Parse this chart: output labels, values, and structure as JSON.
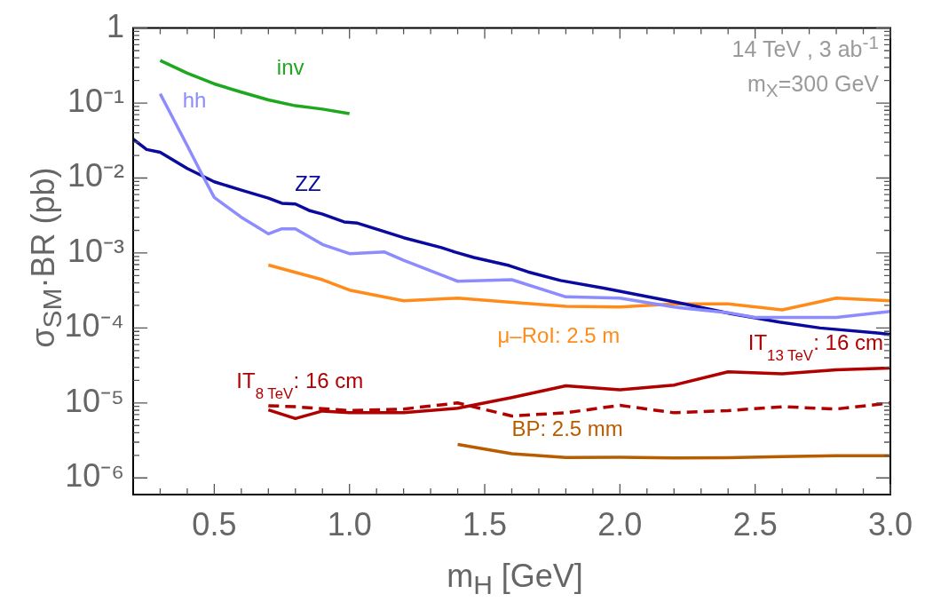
{
  "chart_data": {
    "type": "line",
    "xlabel": "m$_{H}$ [GeV]",
    "ylabel": "σ$_{SM}$·BR (pb)",
    "log": "y",
    "xlim": [
      0.2,
      3.0
    ],
    "ylim": [
      6e-07,
      1
    ],
    "xticks": [
      {
        "value": 0.3,
        "label": null
      },
      {
        "value": 0.4,
        "label": null
      },
      {
        "value": 0.5,
        "label": "0.5"
      },
      {
        "value": 0.6,
        "label": null
      },
      {
        "value": 0.7,
        "label": null
      },
      {
        "value": 0.8,
        "label": null
      },
      {
        "value": 0.9,
        "label": null
      },
      {
        "value": 1.0,
        "label": "1.0"
      },
      {
        "value": 1.1,
        "label": null
      },
      {
        "value": 1.2,
        "label": null
      },
      {
        "value": 1.3,
        "label": null
      },
      {
        "value": 1.4,
        "label": null
      },
      {
        "value": 1.5,
        "label": "1.5"
      },
      {
        "value": 1.6,
        "label": null
      },
      {
        "value": 1.7,
        "label": null
      },
      {
        "value": 1.8,
        "label": null
      },
      {
        "value": 1.9,
        "label": null
      },
      {
        "value": 2.0,
        "label": "2.0"
      },
      {
        "value": 2.1,
        "label": null
      },
      {
        "value": 2.2,
        "label": null
      },
      {
        "value": 2.3,
        "label": null
      },
      {
        "value": 2.4,
        "label": null
      },
      {
        "value": 2.5,
        "label": "2.5"
      },
      {
        "value": 2.6,
        "label": null
      },
      {
        "value": 2.7,
        "label": null
      },
      {
        "value": 2.8,
        "label": null
      },
      {
        "value": 2.9,
        "label": null
      },
      {
        "value": 3.0,
        "label": "3.0"
      }
    ],
    "yticks": [
      {
        "value": 1e-06,
        "label": "10⁻⁶"
      },
      {
        "value": 2e-06,
        "label": null
      },
      {
        "value": 3e-06,
        "label": null
      },
      {
        "value": 4e-06,
        "label": null
      },
      {
        "value": 5e-06,
        "label": null
      },
      {
        "value": 6e-06,
        "label": null
      },
      {
        "value": 7e-06,
        "label": null
      },
      {
        "value": 8e-06,
        "label": null
      },
      {
        "value": 9e-06,
        "label": null
      },
      {
        "value": 1e-05,
        "label": "10⁻⁵"
      },
      {
        "value": 2e-05,
        "label": null
      },
      {
        "value": 3e-05,
        "label": null
      },
      {
        "value": 4e-05,
        "label": null
      },
      {
        "value": 5e-05,
        "label": null
      },
      {
        "value": 6e-05,
        "label": null
      },
      {
        "value": 7e-05,
        "label": null
      },
      {
        "value": 8e-05,
        "label": null
      },
      {
        "value": 9e-05,
        "label": null
      },
      {
        "value": 0.0001,
        "label": "10⁻⁴"
      },
      {
        "value": 0.0002,
        "label": null
      },
      {
        "value": 0.0003,
        "label": null
      },
      {
        "value": 0.0004,
        "label": null
      },
      {
        "value": 0.0005,
        "label": null
      },
      {
        "value": 0.0006,
        "label": null
      },
      {
        "value": 0.0007,
        "label": null
      },
      {
        "value": 0.0008,
        "label": null
      },
      {
        "value": 0.0009,
        "label": null
      },
      {
        "value": 0.001,
        "label": "10⁻³"
      },
      {
        "value": 0.002,
        "label": null
      },
      {
        "value": 0.003,
        "label": null
      },
      {
        "value": 0.004,
        "label": null
      },
      {
        "value": 0.005,
        "label": null
      },
      {
        "value": 0.006,
        "label": null
      },
      {
        "value": 0.007,
        "label": null
      },
      {
        "value": 0.008,
        "label": null
      },
      {
        "value": 0.009,
        "label": null
      },
      {
        "value": 0.01,
        "label": "10⁻²"
      },
      {
        "value": 0.02,
        "label": null
      },
      {
        "value": 0.03,
        "label": null
      },
      {
        "value": 0.04,
        "label": null
      },
      {
        "value": 0.05,
        "label": null
      },
      {
        "value": 0.06,
        "label": null
      },
      {
        "value": 0.07,
        "label": null
      },
      {
        "value": 0.08,
        "label": null
      },
      {
        "value": 0.09,
        "label": null
      },
      {
        "value": 0.1,
        "label": "10⁻¹"
      },
      {
        "value": 0.2,
        "label": null
      },
      {
        "value": 0.3,
        "label": null
      },
      {
        "value": 0.4,
        "label": null
      },
      {
        "value": 0.5,
        "label": null
      },
      {
        "value": 0.6,
        "label": null
      },
      {
        "value": 0.7,
        "label": null
      },
      {
        "value": 0.8,
        "label": null
      },
      {
        "value": 0.9,
        "label": null
      },
      {
        "value": 1,
        "label": "1"
      }
    ],
    "annotations": [
      "14 TeV , 3 ab$^{-1}$",
      "m$_{X}$=300 GeV"
    ],
    "legend": false,
    "marker": "none",
    "series": [
      {
        "name": "inv",
        "color": "#1ea81e",
        "x": [
          0.3,
          0.4,
          0.5,
          0.6,
          0.7,
          0.8,
          0.9,
          1.0
        ],
        "values": [
          0.37,
          0.25,
          0.18,
          0.14,
          0.11,
          0.092,
          0.083,
          0.072
        ]
      },
      {
        "name": "hh",
        "color": "#8c8cff",
        "x": [
          0.3,
          0.35,
          0.4,
          0.45,
          0.5,
          0.6,
          0.7,
          0.75,
          0.8,
          0.9,
          1.0,
          1.13,
          1.2,
          1.4,
          1.6,
          1.8,
          2.0,
          2.2,
          2.4,
          2.5,
          2.8,
          3.0
        ],
        "values": [
          0.133,
          0.06,
          0.027,
          0.012,
          0.0055,
          0.003,
          0.0018,
          0.0021,
          0.0021,
          0.0013,
          0.00098,
          0.00103,
          0.0008,
          0.00042,
          0.00044,
          0.00026,
          0.00025,
          0.00019,
          0.00016,
          0.000138,
          0.000138,
          0.000166
        ]
      },
      {
        "name": "ZZ",
        "color": "#0a0a9e",
        "x": [
          0.2,
          0.25,
          0.3,
          0.4,
          0.5,
          0.6,
          0.7,
          0.75,
          0.8,
          0.85,
          0.9,
          0.98,
          1.03,
          1.2,
          1.34,
          1.39,
          1.46,
          1.59,
          1.66,
          1.78,
          1.94,
          2.21,
          2.41,
          2.59,
          2.74,
          2.96,
          3.0
        ],
        "values": [
          0.033,
          0.024,
          0.022,
          0.0134,
          0.0089,
          0.0069,
          0.0054,
          0.0046,
          0.0045,
          0.0037,
          0.0033,
          0.0026,
          0.0025,
          0.0016,
          0.00118,
          0.00103,
          0.00087,
          0.00068,
          0.00056,
          0.00043,
          0.00034,
          0.00022,
          0.000155,
          0.00012,
          0.0001,
          8.5e-05,
          8.2e-05
        ]
      },
      {
        "name": "μ–RoI: 2.5 m",
        "color": "#ff8c1a",
        "x": [
          0.7,
          0.9,
          1.0,
          1.2,
          1.4,
          1.6,
          1.8,
          2.0,
          2.2,
          2.4,
          2.6,
          2.8,
          3.0
        ],
        "values": [
          0.00069,
          0.00044,
          0.00032,
          0.00023,
          0.00025,
          0.00022,
          0.000195,
          0.00019,
          0.00021,
          0.00021,
          0.000174,
          0.00025,
          0.00023
        ]
      },
      {
        "name": "IT$_{13 TeV}$: 16 cm",
        "color": "#b00000",
        "line_style": "solid",
        "x": [
          0.7,
          0.8,
          0.9,
          1.0,
          1.2,
          1.4,
          1.6,
          1.8,
          2.0,
          2.2,
          2.4,
          2.6,
          2.8,
          3.0
        ],
        "values": [
          8.1e-06,
          6.2e-06,
          7.8e-06,
          7.4e-06,
          7.4e-06,
          8.5e-06,
          1.18e-05,
          1.69e-05,
          1.5e-05,
          1.73e-05,
          2.6e-05,
          2.45e-05,
          2.76e-05,
          2.93e-05
        ]
      },
      {
        "name": "IT$_{8 TeV}$: 16 cm",
        "color": "#b00000",
        "line_style": "dashed",
        "x": [
          0.7,
          0.8,
          1.0,
          1.2,
          1.4,
          1.6,
          1.8,
          2.0,
          2.2,
          2.4,
          2.6,
          2.8,
          3.0
        ],
        "values": [
          9.2e-06,
          8.9e-06,
          7.9e-06,
          8.3e-06,
          1e-05,
          6.7e-06,
          7.4e-06,
          9.3e-06,
          7.4e-06,
          7.9e-06,
          8.9e-06,
          8.3e-06,
          1e-05
        ]
      },
      {
        "name": "BP: 2.5 mm",
        "color": "#b85c00",
        "x": [
          1.4,
          1.6,
          1.8,
          2.0,
          2.2,
          2.4,
          2.6,
          2.8,
          3.0
        ],
        "values": [
          2.8e-06,
          2.1e-06,
          1.87e-06,
          1.88e-06,
          1.85e-06,
          1.86e-06,
          1.93e-06,
          1.98e-06,
          1.98e-06
        ]
      }
    ]
  }
}
